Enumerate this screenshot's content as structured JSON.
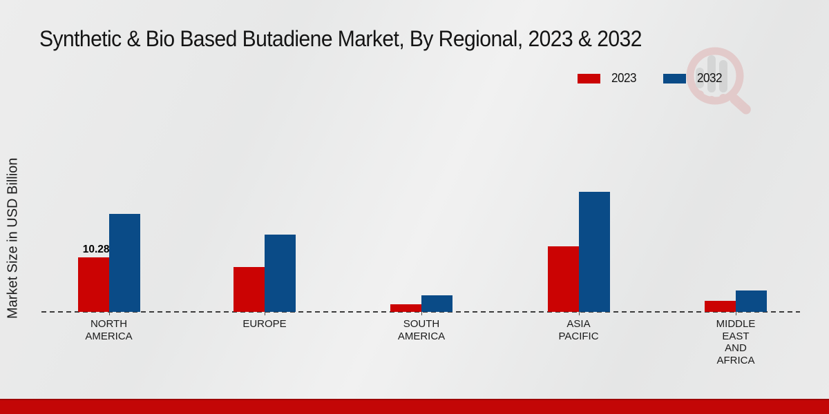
{
  "title": "Synthetic & Bio Based Butadiene Market, By Regional, 2023 & 2032",
  "y_axis_label": "Market Size in USD Billion",
  "legend": [
    {
      "label": "2023",
      "color": "#cb0303"
    },
    {
      "label": "2032",
      "color": "#0a4b87"
    }
  ],
  "colors": {
    "background": "#e9eaea",
    "bar_2023": "#cb0303",
    "bar_2032": "#0a4b87",
    "axis_line": "#3b3b3b",
    "footer_strip": "#c30606"
  },
  "chart_data": {
    "type": "bar",
    "title": "Synthetic & Bio Based Butadiene Market, By Regional, 2023 & 2032",
    "xlabel": "",
    "ylabel": "Market Size in USD Billion",
    "categories": [
      "NORTH AMERICA",
      "EUROPE",
      "SOUTH AMERICA",
      "ASIA PACIFIC",
      "MIDDLE EAST AND AFRICA"
    ],
    "series": [
      {
        "name": "2023",
        "color": "#cb0303",
        "values": [
          10.28,
          8.46,
          1.43,
          12.36,
          2.08
        ]
      },
      {
        "name": "2032",
        "color": "#0a4b87",
        "values": [
          18.48,
          14.57,
          3.12,
          22.64,
          4.03
        ]
      }
    ],
    "data_labels": [
      {
        "series": "2023",
        "category": "NORTH AMERICA",
        "value": "10.28"
      }
    ],
    "ylim": [
      0,
      25
    ],
    "y_axis_ticks_visible": false,
    "grid": false,
    "baseline_style": "dashed",
    "legend_position": "top-right"
  },
  "watermark": {
    "icon": "magnifier-bar-chart-logo"
  }
}
